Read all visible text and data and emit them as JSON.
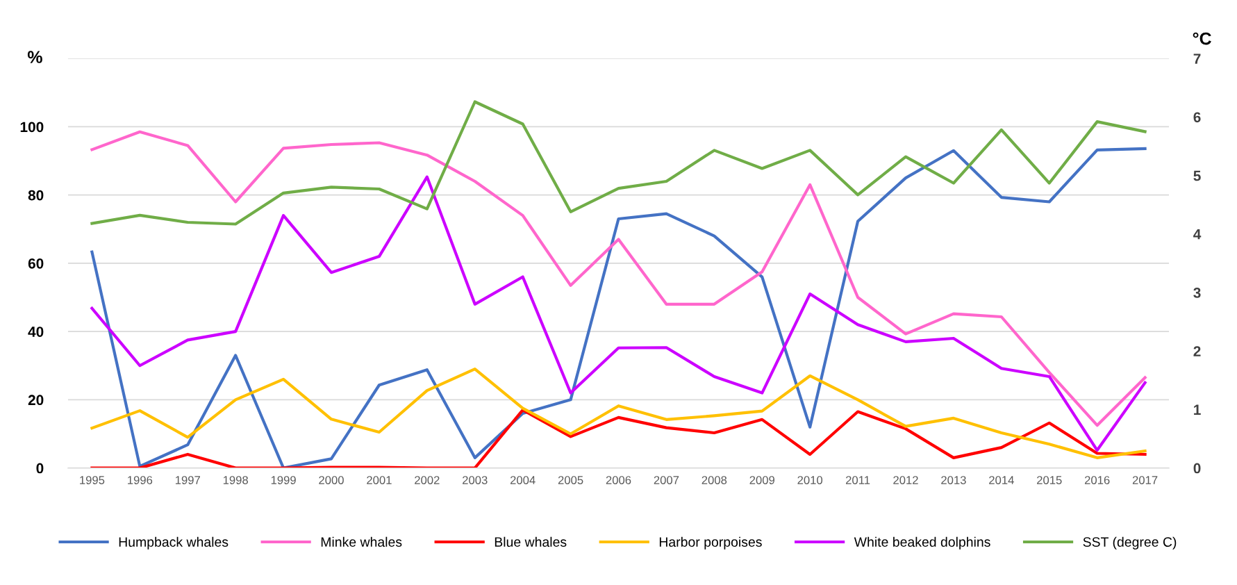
{
  "chart_data": {
    "type": "line",
    "ylabel": "%",
    "y2label": "°C",
    "categories": [
      "1995",
      "1996",
      "1997",
      "1998",
      "1999",
      "2000",
      "2001",
      "2002",
      "2003",
      "2004",
      "2005",
      "2006",
      "2007",
      "2008",
      "2009",
      "2010",
      "2011",
      "2012",
      "2013",
      "2014",
      "2015",
      "2016",
      "2017"
    ],
    "ylim": [
      0,
      120
    ],
    "yticks": [
      0,
      20,
      40,
      60,
      80,
      100,
      {
        "value": 120,
        "label": null
      }
    ],
    "y2lim": [
      0,
      7
    ],
    "y2ticks": [
      0,
      1,
      2,
      3,
      4,
      5,
      6,
      7
    ],
    "grid": "y",
    "legend": "bottom",
    "marker": "none",
    "line_style": "solid",
    "series": [
      {
        "name": "Humpback whales",
        "color": "#4472c4",
        "values": [
          63.3,
          0.5,
          6.8,
          33,
          0,
          2.7,
          24.3,
          28.8,
          3,
          16,
          20,
          73,
          74.5,
          68,
          56,
          12,
          72.3,
          85,
          93,
          79.3,
          78,
          93.2,
          93.6
        ]
      },
      {
        "name": "Minke whales",
        "color": "#ff66cc",
        "values": [
          93.3,
          98.5,
          94.5,
          78,
          93.7,
          94.8,
          95.3,
          91.7,
          84,
          74,
          53.5,
          67,
          48,
          48,
          57.5,
          83,
          50,
          39.3,
          45.2,
          44.3,
          28,
          12.5,
          26.5
        ]
      },
      {
        "name": "Blue whales",
        "color": "#ff0000",
        "values": [
          0,
          0,
          4,
          0,
          0,
          0.2,
          0.2,
          0,
          0,
          17,
          9.2,
          14.8,
          11.8,
          10.3,
          14.2,
          4,
          16.5,
          11.5,
          3,
          6,
          13.2,
          4.3,
          4
        ]
      },
      {
        "name": "Harbor porpoises",
        "color": "#ffc000",
        "values": [
          11.7,
          16.8,
          9,
          20,
          26,
          14.3,
          10.5,
          22.7,
          29,
          17.5,
          10,
          18.2,
          14.2,
          15.3,
          16.7,
          27,
          20,
          12.2,
          14.6,
          10.3,
          7,
          3,
          5
        ]
      },
      {
        "name": "White beaked dolphins",
        "color": "#cc00ff",
        "values": [
          46.8,
          30,
          37.5,
          40,
          74,
          57.3,
          62,
          85.3,
          48,
          56,
          22,
          35.2,
          35.3,
          26.8,
          22,
          51,
          42,
          37,
          38,
          29.2,
          26.8,
          5.2,
          25
        ]
      },
      {
        "name": "SST (degree C)",
        "color": "#70ad47",
        "axis": "y2",
        "values": [
          4.18,
          4.32,
          4.2,
          4.17,
          4.7,
          4.8,
          4.77,
          4.43,
          6.26,
          5.88,
          4.38,
          4.78,
          4.9,
          5.43,
          5.12,
          5.43,
          4.67,
          5.32,
          4.87,
          5.78,
          4.87,
          5.92,
          5.75
        ]
      }
    ]
  }
}
